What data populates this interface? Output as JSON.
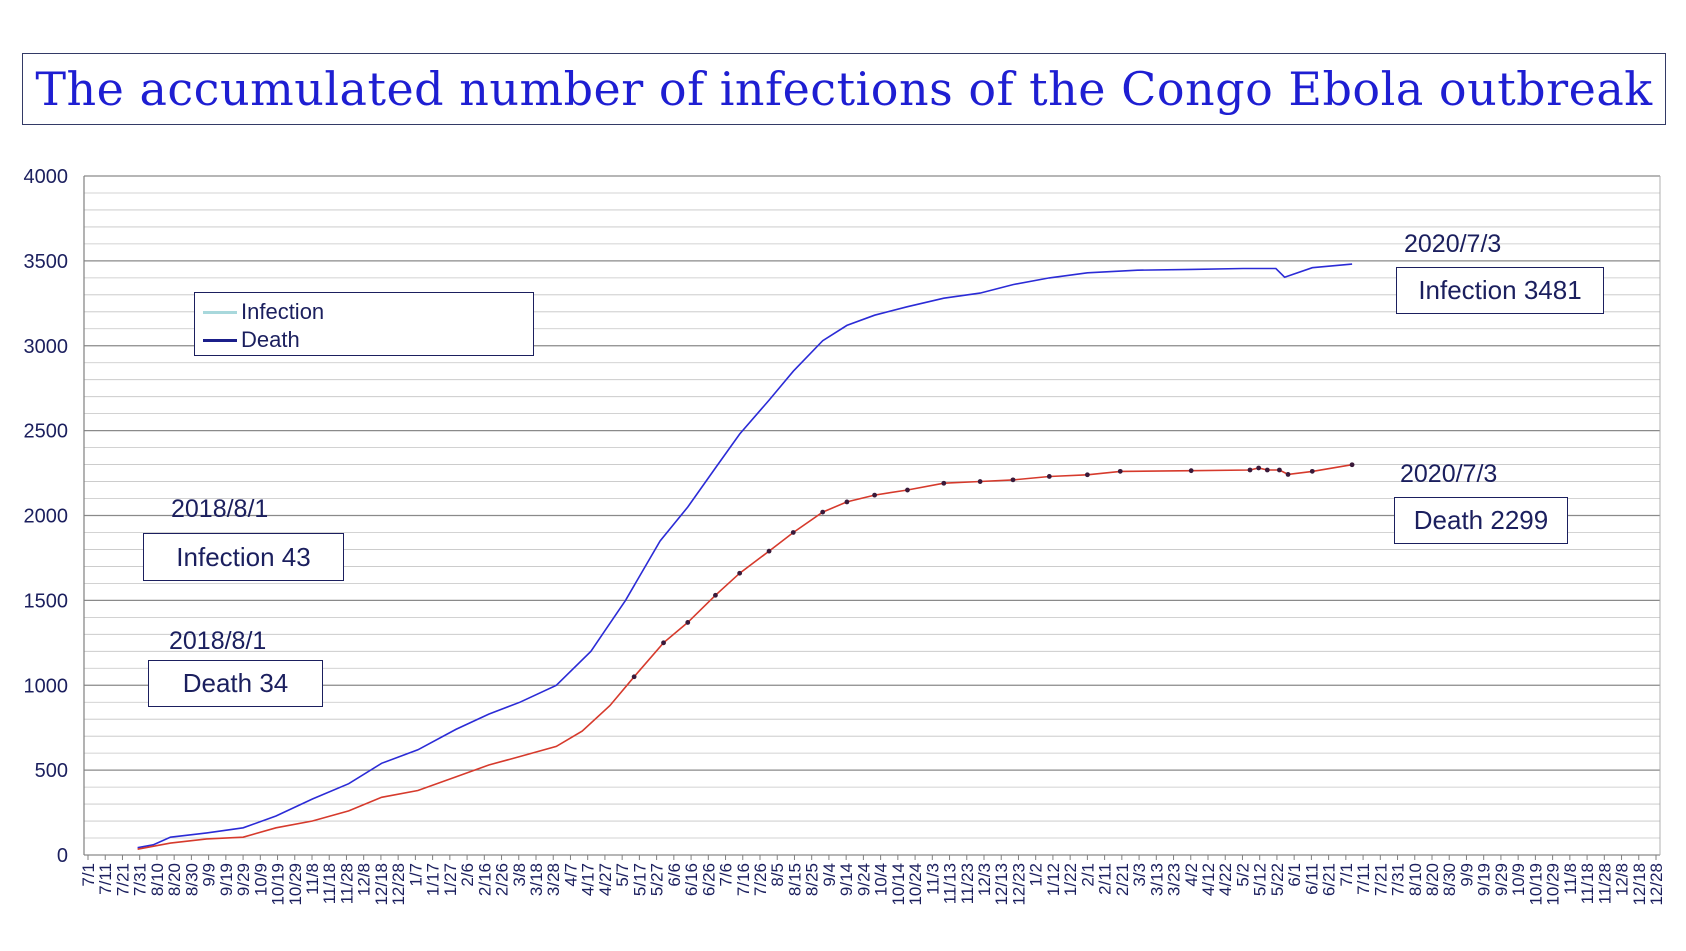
{
  "title": "The accumulated number of infections of the Congo Ebola outbreak",
  "legend": {
    "items": [
      {
        "label": "Infection",
        "color": "#a8d8dc"
      },
      {
        "label": "Death",
        "color": "#1b1f8a"
      }
    ]
  },
  "annotations": {
    "infection_end_date": "2020/7/3",
    "infection_end_label": "Infection 3481",
    "death_end_date": "2020/7/3",
    "death_end_label": "Death 2299",
    "infection_start_date": "2018/8/1",
    "infection_start_label": "Infection 43",
    "death_start_date": "2018/8/1",
    "death_start_label": "Death 34"
  },
  "chart_data": {
    "type": "line",
    "title": "The accumulated number of infections of the Congo Ebola outbreak",
    "ylim": [
      0,
      4000
    ],
    "yticks": [
      0,
      500,
      1000,
      1500,
      2000,
      2500,
      3000,
      3500,
      4000
    ],
    "grid": true,
    "legend_position": "upper-left",
    "x_tick_labels": [
      "7/1",
      "7/11",
      "7/21",
      "7/31",
      "8/10",
      "8/20",
      "8/30",
      "9/9",
      "9/19",
      "9/29",
      "10/9",
      "10/19",
      "10/29",
      "11/8",
      "11/18",
      "11/28",
      "12/8",
      "12/18",
      "12/28",
      "1/7",
      "1/17",
      "1/27",
      "2/6",
      "2/16",
      "2/26",
      "3/8",
      "3/18",
      "3/28",
      "4/7",
      "4/17",
      "4/27",
      "5/7",
      "5/17",
      "5/27",
      "6/6",
      "6/16",
      "6/26",
      "7/6",
      "7/16",
      "7/26",
      "8/5",
      "8/15",
      "8/25",
      "9/4",
      "9/14",
      "9/24",
      "10/4",
      "10/14",
      "10/24",
      "11/3",
      "11/13",
      "11/23",
      "12/3",
      "12/13",
      "12/23",
      "1/2",
      "1/12",
      "1/22",
      "2/1",
      "2/11",
      "2/21",
      "3/3",
      "3/13",
      "3/23",
      "4/2",
      "4/12",
      "4/22",
      "5/2",
      "5/12",
      "5/22",
      "6/1",
      "6/11",
      "6/21",
      "7/1",
      "7/11",
      "7/21",
      "7/31",
      "8/10",
      "8/20",
      "8/30",
      "9/9",
      "9/19",
      "9/29",
      "10/9",
      "10/19",
      "10/29",
      "11/8",
      "11/18",
      "11/28",
      "12/8",
      "12/18",
      "12/28"
    ],
    "x_range": [
      "2018-07-01",
      "2020-12-28"
    ],
    "series": [
      {
        "name": "Infection",
        "color": "#2b2bd6",
        "points": [
          [
            "2018-08-01",
            43
          ],
          [
            "2018-08-10",
            60
          ],
          [
            "2018-08-20",
            105
          ],
          [
            "2018-09-10",
            130
          ],
          [
            "2018-10-01",
            160
          ],
          [
            "2018-10-20",
            230
          ],
          [
            "2018-11-10",
            330
          ],
          [
            "2018-12-01",
            420
          ],
          [
            "2018-12-20",
            540
          ],
          [
            "2019-01-10",
            620
          ],
          [
            "2019-02-01",
            740
          ],
          [
            "2019-02-20",
            830
          ],
          [
            "2019-03-10",
            900
          ],
          [
            "2019-03-31",
            1000
          ],
          [
            "2019-04-20",
            1200
          ],
          [
            "2019-05-10",
            1500
          ],
          [
            "2019-05-30",
            1850
          ],
          [
            "2019-06-15",
            2050
          ],
          [
            "2019-07-01",
            2280
          ],
          [
            "2019-07-15",
            2480
          ],
          [
            "2019-08-01",
            2680
          ],
          [
            "2019-08-15",
            2850
          ],
          [
            "2019-09-01",
            3030
          ],
          [
            "2019-09-15",
            3120
          ],
          [
            "2019-10-01",
            3180
          ],
          [
            "2019-10-20",
            3230
          ],
          [
            "2019-11-10",
            3280
          ],
          [
            "2019-12-01",
            3310
          ],
          [
            "2019-12-20",
            3360
          ],
          [
            "2020-01-10",
            3400
          ],
          [
            "2020-02-01",
            3430
          ],
          [
            "2020-03-01",
            3445
          ],
          [
            "2020-04-01",
            3450
          ],
          [
            "2020-05-01",
            3455
          ],
          [
            "2020-05-20",
            3455
          ],
          [
            "2020-05-25",
            3404
          ],
          [
            "2020-06-10",
            3460
          ],
          [
            "2020-07-03",
            3481
          ]
        ]
      },
      {
        "name": "Death",
        "color": "#d63a2c",
        "points": [
          [
            "2018-08-01",
            34
          ],
          [
            "2018-08-20",
            70
          ],
          [
            "2018-09-10",
            95
          ],
          [
            "2018-10-01",
            105
          ],
          [
            "2018-10-20",
            160
          ],
          [
            "2018-11-10",
            200
          ],
          [
            "2018-12-01",
            260
          ],
          [
            "2018-12-20",
            340
          ],
          [
            "2019-01-10",
            380
          ],
          [
            "2019-02-01",
            460
          ],
          [
            "2019-02-20",
            530
          ],
          [
            "2019-03-10",
            580
          ],
          [
            "2019-03-31",
            640
          ],
          [
            "2019-04-15",
            730
          ],
          [
            "2019-05-01",
            880
          ],
          [
            "2019-05-15",
            1050
          ],
          [
            "2019-06-01",
            1250
          ],
          [
            "2019-06-15",
            1370
          ],
          [
            "2019-07-01",
            1530
          ],
          [
            "2019-07-15",
            1660
          ],
          [
            "2019-08-01",
            1790
          ],
          [
            "2019-08-15",
            1900
          ],
          [
            "2019-09-01",
            2020
          ],
          [
            "2019-09-15",
            2080
          ],
          [
            "2019-10-01",
            2120
          ],
          [
            "2019-10-20",
            2150
          ],
          [
            "2019-11-10",
            2190
          ],
          [
            "2019-12-01",
            2200
          ],
          [
            "2019-12-20",
            2210
          ],
          [
            "2020-01-10",
            2230
          ],
          [
            "2020-02-01",
            2240
          ],
          [
            "2020-02-20",
            2260
          ],
          [
            "2020-04-01",
            2264
          ],
          [
            "2020-05-05",
            2268
          ],
          [
            "2020-05-10",
            2280
          ],
          [
            "2020-05-15",
            2268
          ],
          [
            "2020-05-22",
            2268
          ],
          [
            "2020-05-27",
            2242
          ],
          [
            "2020-06-10",
            2260
          ],
          [
            "2020-07-03",
            2299
          ]
        ]
      }
    ]
  }
}
